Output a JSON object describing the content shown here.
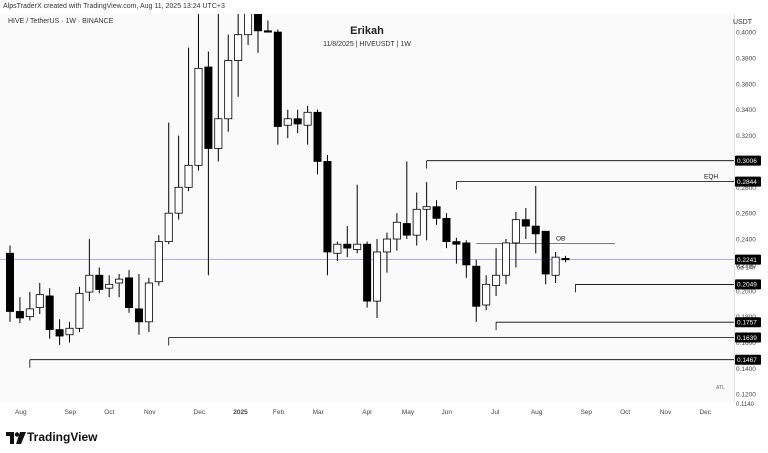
{
  "header": {
    "credit": "AlpsTraderX created with TradingView.com, Aug 11, 2025 13:24 UTC+3",
    "symbol": "HIVE / TetherUS · 1W · BINANCE",
    "currency": "USDT",
    "title": "Erikah",
    "subtitle": "11/8/2025 | HIVEUSDT | 1W"
  },
  "footer": {
    "brand": "TradingView",
    "logo_icon": "tradingview-logo-icon"
  },
  "colors": {
    "up_body": "#ffffff",
    "down_body": "#000000",
    "wick": "#000000",
    "level_line": "#000000",
    "current_price_line": "#9c8fe8",
    "price_tag_bg": "#000000",
    "price_tag_text": "#ffffff"
  },
  "chart_data": {
    "type": "candlestick",
    "timeframe": "1W",
    "ylim": [
      0.114,
      0.414
    ],
    "y_ticks": [
      "0.4000",
      "0.3800",
      "0.3600",
      "0.3400",
      "0.3200",
      "0.3000",
      "0.2800",
      "0.2600",
      "0.2400",
      "0.2200",
      "0.2000",
      "0.1800",
      "0.1600",
      "0.1400",
      "0.1200"
    ],
    "y_tick_values": [
      0.4,
      0.38,
      0.36,
      0.34,
      0.32,
      0.3,
      0.28,
      0.26,
      0.24,
      0.22,
      0.2,
      0.18,
      0.16,
      0.14,
      0.12
    ],
    "partial_axis_labels": [
      "ATL",
      "0.1140"
    ],
    "x_ticks": [
      "Aug",
      "Sep",
      "Oct",
      "Nov",
      "Dec",
      "2025",
      "Feb",
      "Mar",
      "Apr",
      "May",
      "Jun",
      "Jul",
      "Aug",
      "Sep",
      "Oct",
      "Nov",
      "Dec"
    ],
    "x_tick_weeks": [
      0,
      5,
      9,
      13,
      18,
      22,
      26,
      30,
      35,
      39,
      43,
      48,
      52,
      57,
      61,
      65,
      69
    ],
    "candles": [
      {
        "o": 0.229,
        "h": 0.235,
        "l": 0.176,
        "c": 0.184
      },
      {
        "o": 0.184,
        "h": 0.195,
        "l": 0.175,
        "c": 0.179
      },
      {
        "o": 0.18,
        "h": 0.199,
        "l": 0.177,
        "c": 0.186
      },
      {
        "o": 0.187,
        "h": 0.206,
        "l": 0.182,
        "c": 0.197
      },
      {
        "o": 0.196,
        "h": 0.202,
        "l": 0.163,
        "c": 0.17
      },
      {
        "o": 0.17,
        "h": 0.178,
        "l": 0.158,
        "c": 0.165
      },
      {
        "o": 0.166,
        "h": 0.176,
        "l": 0.16,
        "c": 0.171
      },
      {
        "o": 0.171,
        "h": 0.203,
        "l": 0.168,
        "c": 0.198
      },
      {
        "o": 0.199,
        "h": 0.24,
        "l": 0.192,
        "c": 0.212
      },
      {
        "o": 0.212,
        "h": 0.218,
        "l": 0.198,
        "c": 0.201
      },
      {
        "o": 0.202,
        "h": 0.212,
        "l": 0.195,
        "c": 0.205
      },
      {
        "o": 0.206,
        "h": 0.213,
        "l": 0.195,
        "c": 0.209
      },
      {
        "o": 0.21,
        "h": 0.216,
        "l": 0.183,
        "c": 0.187
      },
      {
        "o": 0.186,
        "h": 0.213,
        "l": 0.166,
        "c": 0.176
      },
      {
        "o": 0.176,
        "h": 0.21,
        "l": 0.168,
        "c": 0.206
      },
      {
        "o": 0.207,
        "h": 0.243,
        "l": 0.204,
        "c": 0.238
      },
      {
        "o": 0.238,
        "h": 0.33,
        "l": 0.236,
        "c": 0.26
      },
      {
        "o": 0.26,
        "h": 0.32,
        "l": 0.255,
        "c": 0.28
      },
      {
        "o": 0.28,
        "h": 0.388,
        "l": 0.277,
        "c": 0.297
      },
      {
        "o": 0.297,
        "h": 0.426,
        "l": 0.293,
        "c": 0.372
      },
      {
        "o": 0.373,
        "h": 0.385,
        "l": 0.212,
        "c": 0.31
      },
      {
        "o": 0.31,
        "h": 0.432,
        "l": 0.3,
        "c": 0.333
      },
      {
        "o": 0.333,
        "h": 0.398,
        "l": 0.323,
        "c": 0.378
      },
      {
        "o": 0.378,
        "h": 0.425,
        "l": 0.35,
        "c": 0.398
      },
      {
        "o": 0.398,
        "h": 0.442,
        "l": 0.39,
        "c": 0.42
      },
      {
        "o": 0.42,
        "h": 0.439,
        "l": 0.384,
        "c": 0.401
      },
      {
        "o": 0.401,
        "h": 0.409,
        "l": 0.4,
        "c": 0.4
      },
      {
        "o": 0.4,
        "h": 0.402,
        "l": 0.313,
        "c": 0.327
      },
      {
        "o": 0.328,
        "h": 0.34,
        "l": 0.318,
        "c": 0.333
      },
      {
        "o": 0.333,
        "h": 0.34,
        "l": 0.322,
        "c": 0.329
      },
      {
        "o": 0.328,
        "h": 0.343,
        "l": 0.313,
        "c": 0.338
      },
      {
        "o": 0.338,
        "h": 0.34,
        "l": 0.29,
        "c": 0.3
      },
      {
        "o": 0.3,
        "h": 0.305,
        "l": 0.212,
        "c": 0.23
      },
      {
        "o": 0.229,
        "h": 0.238,
        "l": 0.223,
        "c": 0.236
      },
      {
        "o": 0.236,
        "h": 0.25,
        "l": 0.226,
        "c": 0.233
      },
      {
        "o": 0.232,
        "h": 0.282,
        "l": 0.229,
        "c": 0.236
      },
      {
        "o": 0.236,
        "h": 0.238,
        "l": 0.187,
        "c": 0.192
      },
      {
        "o": 0.192,
        "h": 0.24,
        "l": 0.179,
        "c": 0.23
      },
      {
        "o": 0.23,
        "h": 0.245,
        "l": 0.214,
        "c": 0.24
      },
      {
        "o": 0.24,
        "h": 0.26,
        "l": 0.231,
        "c": 0.253
      },
      {
        "o": 0.252,
        "h": 0.3,
        "l": 0.24,
        "c": 0.243
      },
      {
        "o": 0.243,
        "h": 0.276,
        "l": 0.235,
        "c": 0.263
      },
      {
        "o": 0.263,
        "h": 0.284,
        "l": 0.239,
        "c": 0.265
      },
      {
        "o": 0.265,
        "h": 0.27,
        "l": 0.251,
        "c": 0.256
      },
      {
        "o": 0.256,
        "h": 0.26,
        "l": 0.233,
        "c": 0.238
      },
      {
        "o": 0.238,
        "h": 0.241,
        "l": 0.221,
        "c": 0.236
      },
      {
        "o": 0.237,
        "h": 0.239,
        "l": 0.21,
        "c": 0.22
      },
      {
        "o": 0.219,
        "h": 0.224,
        "l": 0.176,
        "c": 0.188
      },
      {
        "o": 0.189,
        "h": 0.212,
        "l": 0.185,
        "c": 0.205
      },
      {
        "o": 0.204,
        "h": 0.233,
        "l": 0.196,
        "c": 0.212
      },
      {
        "o": 0.212,
        "h": 0.24,
        "l": 0.205,
        "c": 0.237
      },
      {
        "o": 0.237,
        "h": 0.261,
        "l": 0.218,
        "c": 0.255
      },
      {
        "o": 0.255,
        "h": 0.264,
        "l": 0.24,
        "c": 0.25
      },
      {
        "o": 0.25,
        "h": 0.281,
        "l": 0.229,
        "c": 0.244
      },
      {
        "o": 0.246,
        "h": 0.246,
        "l": 0.205,
        "c": 0.213
      },
      {
        "o": 0.212,
        "h": 0.23,
        "l": 0.206,
        "c": 0.226
      },
      {
        "o": 0.225,
        "h": 0.227,
        "l": 0.222,
        "c": 0.224
      }
    ],
    "current_price": 0.2241,
    "current_price_tag": "0.2241",
    "countdown_tag": "6d 14h",
    "levels": [
      {
        "price": 0.3006,
        "label": "0.3006",
        "start_week": 42
      },
      {
        "price": 0.2844,
        "label": "0.2844",
        "start_week": 45,
        "annotation": "EQH"
      },
      {
        "price": 0.2049,
        "label": "0.2049",
        "start_week": 57
      },
      {
        "price": 0.1757,
        "label": "0.1757",
        "start_week": 49
      },
      {
        "price": 0.1639,
        "label": "0.1639",
        "start_week": 16
      },
      {
        "price": 0.1467,
        "label": "0.1467",
        "start_week": 2
      }
    ],
    "ob_zone": {
      "label": "OB",
      "price": 0.2366,
      "start_week": 47,
      "end_week": 61
    }
  }
}
